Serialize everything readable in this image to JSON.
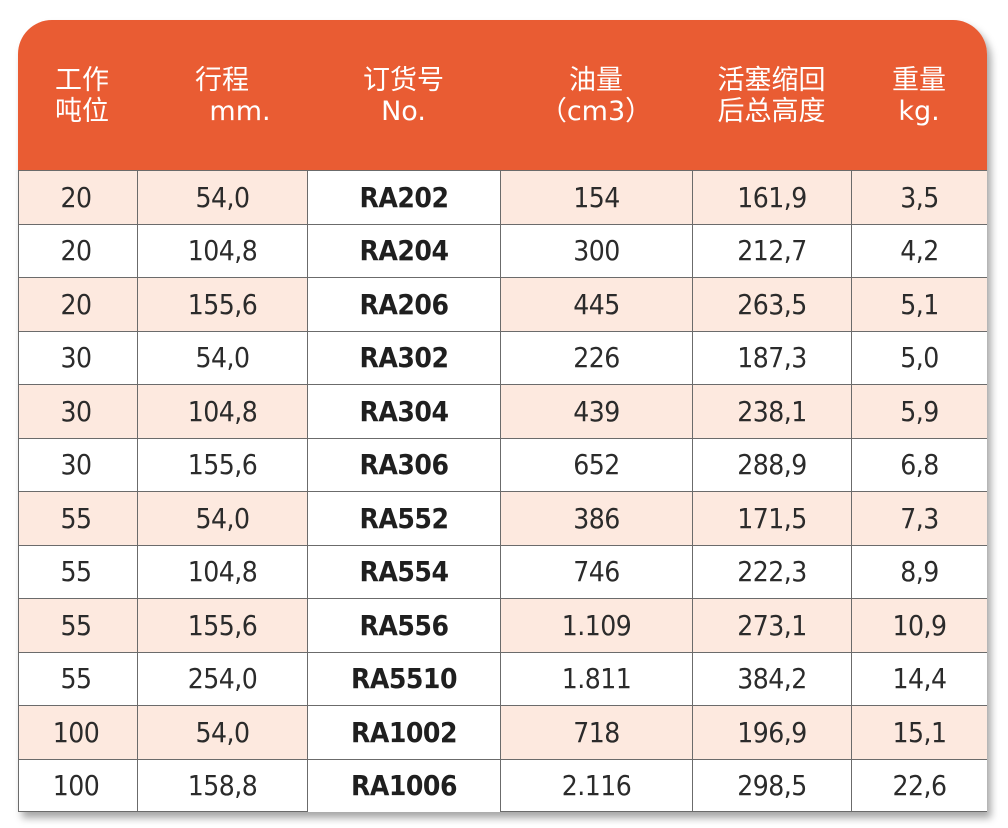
{
  "colors": {
    "header_bg": "#e95c33",
    "row_shade": "#fde9df",
    "border": "#6b6b6b"
  },
  "headers": [
    {
      "line1": "工作",
      "line2": "吨位"
    },
    {
      "line1": "行程",
      "line2": "mm."
    },
    {
      "line1": "订货号",
      "line2": "No."
    },
    {
      "line1": "油量",
      "line2": "（cm3）"
    },
    {
      "line1": "活塞缩回",
      "line2": "后总高度"
    },
    {
      "line1": "重量",
      "line2": "kg."
    }
  ],
  "rows": [
    [
      "20",
      "54,0",
      "RA202",
      "154",
      "161,9",
      "3,5"
    ],
    [
      "20",
      "104,8",
      "RA204",
      "300",
      "212,7",
      "4,2"
    ],
    [
      "20",
      "155,6",
      "RA206",
      "445",
      "263,5",
      "5,1"
    ],
    [
      "30",
      "54,0",
      "RA302",
      "226",
      "187,3",
      "5,0"
    ],
    [
      "30",
      "104,8",
      "RA304",
      "439",
      "238,1",
      "5,9"
    ],
    [
      "30",
      "155,6",
      "RA306",
      "652",
      "288,9",
      "6,8"
    ],
    [
      "55",
      "54,0",
      "RA552",
      "386",
      "171,5",
      "7,3"
    ],
    [
      "55",
      "104,8",
      "RA554",
      "746",
      "222,3",
      "8,9"
    ],
    [
      "55",
      "155,6",
      "RA556",
      "1.109",
      "273,1",
      "10,9"
    ],
    [
      "55",
      "254,0",
      "RA5510",
      "1.811",
      "384,2",
      "14,4"
    ],
    [
      "100",
      "54,0",
      "RA1002",
      "718",
      "196,9",
      "15,1"
    ],
    [
      "100",
      "158,8",
      "RA1006",
      "2.116",
      "298,5",
      "22,6"
    ]
  ]
}
